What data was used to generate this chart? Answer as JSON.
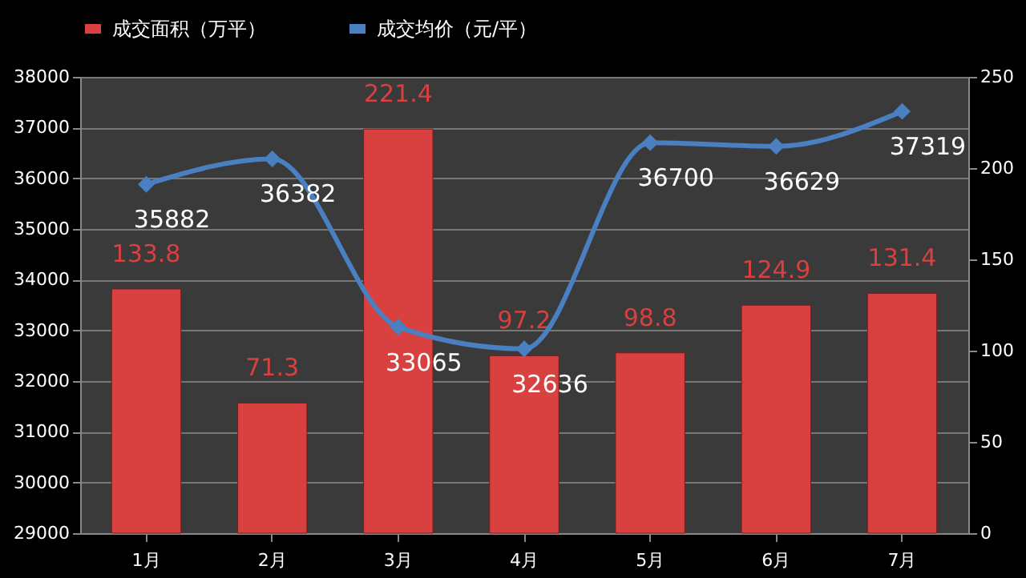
{
  "chart_data": {
    "type": "bar",
    "categories": [
      "1月",
      "2月",
      "3月",
      "4月",
      "5月",
      "6月",
      "7月"
    ],
    "series": [
      {
        "name": "成交面积（万平）",
        "type": "bar",
        "axis": "y2",
        "color": "#d94040",
        "values": [
          133.8,
          71.3,
          221.4,
          97.2,
          98.8,
          124.9,
          131.4
        ]
      },
      {
        "name": "成交均价（元/平）",
        "type": "line",
        "color": "#4a7fc1",
        "values": [
          35882,
          36382,
          33065,
          32636,
          36700,
          36629,
          37319
        ]
      }
    ],
    "ylim": [
      29000,
      38000
    ],
    "yticks": [
      29000,
      30000,
      31000,
      32000,
      33000,
      34000,
      35000,
      36000,
      37000,
      38000
    ],
    "y2lim": [
      0,
      250
    ],
    "y2ticks": [
      0,
      50,
      100,
      150,
      200,
      250
    ],
    "grid": "y",
    "legend": "top",
    "marker": "diamond",
    "data_labels": true
  }
}
